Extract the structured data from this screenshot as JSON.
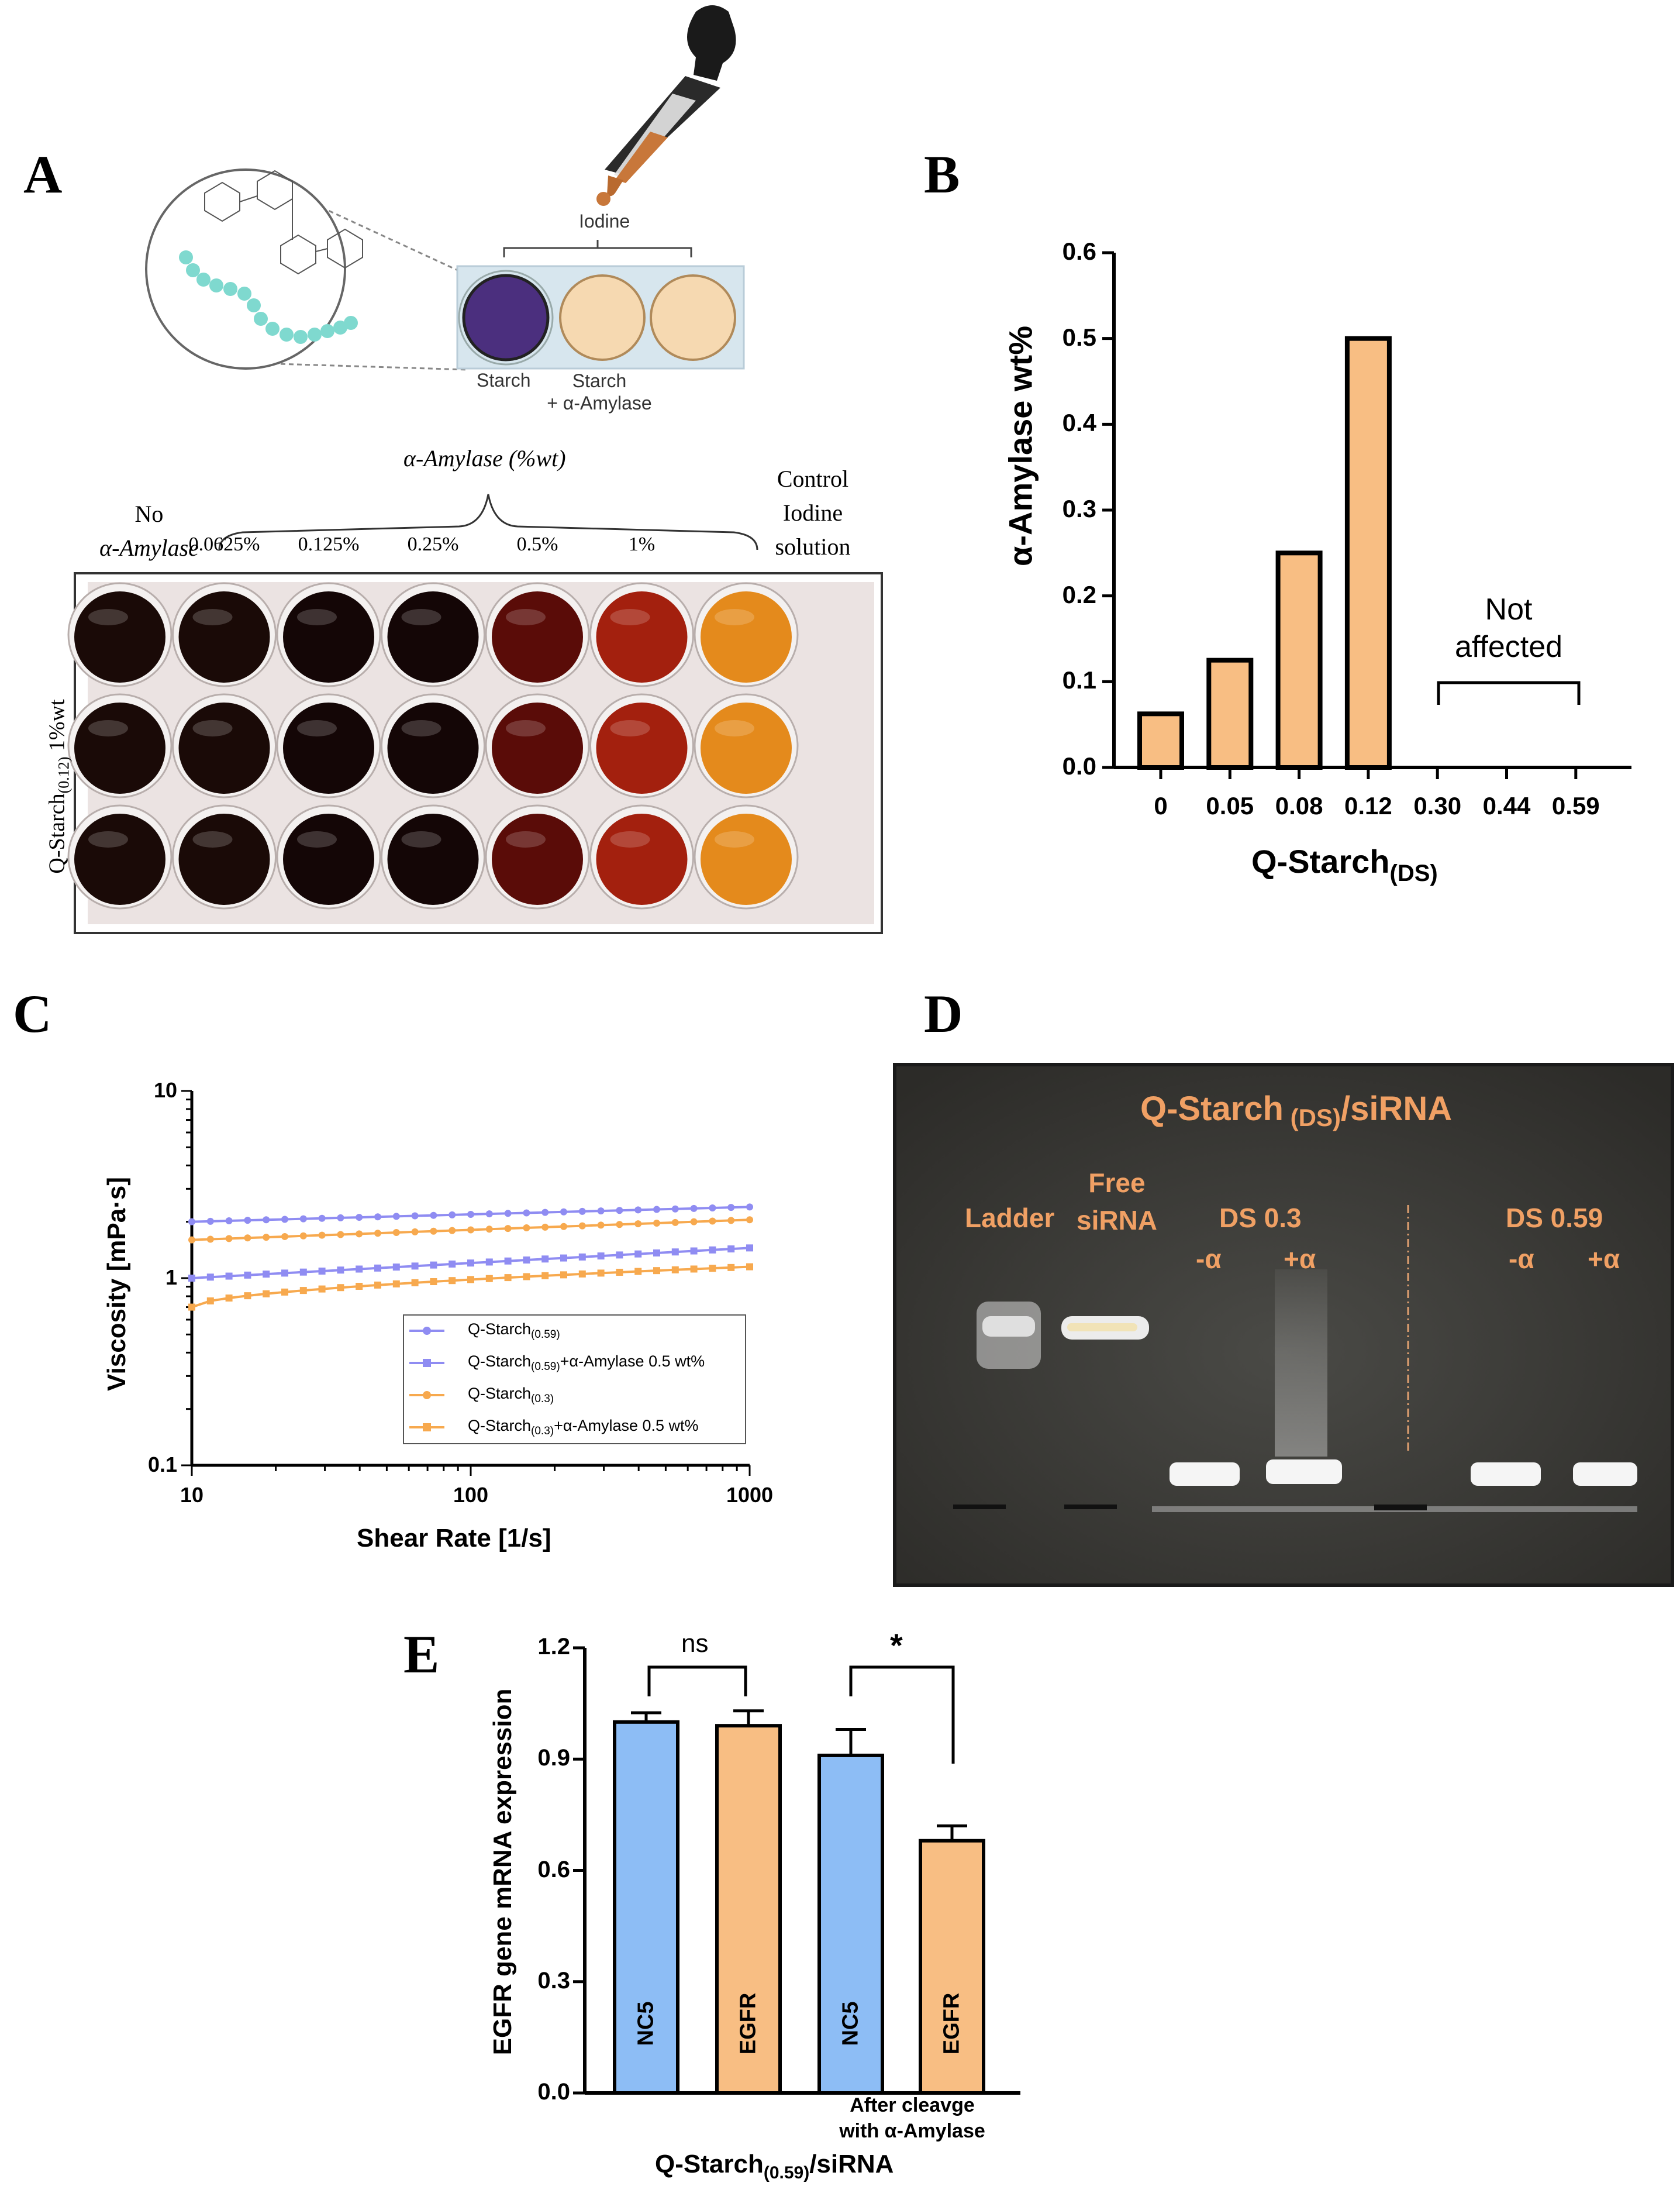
{
  "panels": {
    "a": "A",
    "b": "B",
    "c": "C",
    "d": "D",
    "e": "E"
  },
  "panel_a": {
    "iodine_label": "Iodine",
    "starch_label": "Starch",
    "starch_amylase_line1": "Starch",
    "starch_amylase_line2": "+ α-Amylase",
    "group_header": "α-Amylase (%wt)",
    "no_amylase_line1": "No",
    "no_amylase_line2": "α-Amylase",
    "control_line1": "Control",
    "control_line2": "Iodine",
    "control_line3": "solution",
    "concentrations": [
      "0.0625%",
      "0.125%",
      "0.25%",
      "0.5%",
      "1%"
    ],
    "row_label": "Q-Starch",
    "row_label_sub": "(0.12)",
    "row_label_tail": " 1%wt",
    "well_colors": [
      "#1a0a07",
      "#1a0a07",
      "#140606",
      "#140606",
      "#5a0c08",
      "#a3200e",
      "#e48a1c"
    ],
    "colors": {
      "purple": "#4b2f7e",
      "beige": "#f6d9b1",
      "teal": "#7fd9cf"
    }
  },
  "chart_data": [
    {
      "type": "bar",
      "panel": "B",
      "title": "",
      "categories": [
        "0",
        "0.05",
        "0.08",
        "0.12",
        "0.30",
        "0.44",
        "0.59"
      ],
      "values": [
        0.0625,
        0.125,
        0.25,
        0.5,
        0,
        0,
        0
      ],
      "ylabel": "α-Amylase wt%",
      "xlabel_main": "Q-Starch",
      "xlabel_sub": "(DS)",
      "ylim": [
        0,
        0.6
      ],
      "yticks": [
        "0.0",
        "0.1",
        "0.2",
        "0.3",
        "0.4",
        "0.5",
        "0.6"
      ],
      "annotation_line1": "Not",
      "annotation_line2": "affected",
      "bar_color": "#f8be83"
    },
    {
      "type": "line",
      "panel": "C",
      "xscale": "log",
      "yscale": "log",
      "xlim": [
        10,
        1000
      ],
      "ylim": [
        0.1,
        10
      ],
      "xticks": [
        "10",
        "100",
        "1000"
      ],
      "yticks": [
        "10",
        "1",
        "0.1"
      ],
      "xlabel": "Shear Rate [1/s]",
      "ylabel": "Viscosity [mPa·s]",
      "series": [
        {
          "name": "Q-Starch",
          "sub": "(0.59)",
          "tail": "",
          "color": "#8f8cf2",
          "marker": "circle",
          "start": 2.0,
          "end": 2.4
        },
        {
          "name": "Q-Starch",
          "sub": "(0.59)",
          "tail": "+α-Amylase 0.5 wt%",
          "color": "#8f8cf2",
          "marker": "square",
          "start": 1.0,
          "end": 1.45
        },
        {
          "name": "Q-Starch",
          "sub": "(0.3)",
          "tail": "",
          "color": "#f7a94e",
          "marker": "circle",
          "start": 1.6,
          "end": 2.05
        },
        {
          "name": "Q-Starch",
          "sub": "(0.3)",
          "tail": "+α-Amylase 0.5 wt%",
          "color": "#f7a94e",
          "marker": "square",
          "start": 0.7,
          "end": 1.15
        }
      ]
    },
    {
      "type": "bar",
      "panel": "E",
      "categories": [
        "NC5",
        "EGFR",
        "NC5",
        "EGFR"
      ],
      "values": [
        1.0,
        0.99,
        0.91,
        0.68
      ],
      "errors": [
        0.025,
        0.04,
        0.07,
        0.04
      ],
      "colors": [
        "#8dbdf5",
        "#f8be83",
        "#8dbdf5",
        "#f8be83"
      ],
      "ylabel": "EGFR gene mRNA expression",
      "ylim": [
        0,
        1.2
      ],
      "yticks": [
        "0.0",
        "0.3",
        "0.6",
        "0.9",
        "1.2"
      ],
      "significance": [
        "ns",
        "*"
      ],
      "note_line1": "After cleavge",
      "note_line2": "with α-Amylase",
      "xlabel_main": "Q-Starch",
      "xlabel_sub": "(0.59)",
      "xlabel_tail": "/siRNA"
    }
  ],
  "panel_d": {
    "title_main": "Q-Starch",
    "title_sub": " (DS)",
    "title_tail": "/siRNA",
    "ladder": "Ladder",
    "free_line1": "Free",
    "free_line2": "siRNA",
    "ds03": "DS 0.3",
    "ds059": "DS 0.59",
    "minus_a": "-α",
    "plus_a": "+α",
    "label_color": "#f0a064"
  }
}
